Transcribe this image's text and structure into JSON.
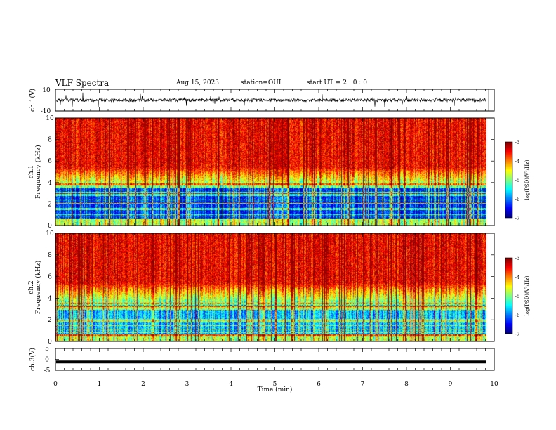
{
  "header": {
    "title": "VLF Spectra",
    "date": "Aug.15, 2023",
    "station": "station=OUI",
    "start": "start  UT =   2  : 0   : 0"
  },
  "chart_data": [
    {
      "type": "line",
      "panel": "ch1-waveform",
      "ylabel": "ch.1(V)",
      "ylim": [
        -10,
        10
      ],
      "yticks": [
        "10",
        "-10"
      ],
      "xlim": [
        0,
        10
      ],
      "series": [
        {
          "name": "",
          "baseline": 0,
          "typical_amplitude": 1.5,
          "trace_end": 9.82
        }
      ]
    },
    {
      "type": "heatmap",
      "panel": "ch1-spectrogram",
      "ylabel": "ch.1",
      "ylabel2": "Frequency  (kHz)",
      "ylim": [
        0,
        10
      ],
      "yticks": [
        "0",
        "2",
        "4",
        "6",
        "8",
        "10"
      ],
      "xlim": [
        0,
        10
      ],
      "data_end_min": 9.82,
      "colorbar": {
        "label": "log(PSD)(V²/Hz)",
        "range": [
          -7,
          -3
        ],
        "ticks": [
          "-3",
          "-4",
          "-5",
          "-6",
          "-7"
        ]
      }
    },
    {
      "type": "heatmap",
      "panel": "ch2-spectrogram",
      "ylabel": "ch.2",
      "ylabel2": "Frequency  (kHz)",
      "ylim": [
        0,
        10
      ],
      "yticks": [
        "0",
        "2",
        "4",
        "6",
        "8",
        "10"
      ],
      "xlim": [
        0,
        10
      ],
      "data_end_min": 9.82,
      "colorbar": {
        "label": "log(PSD)(V²/Hz)",
        "range": [
          -7,
          -3
        ],
        "ticks": [
          "-3",
          "-4",
          "-5",
          "-6",
          "-7"
        ]
      }
    },
    {
      "type": "line",
      "panel": "ch3-waveform",
      "ylabel": "ch.3(V)",
      "ylim": [
        -5,
        5
      ],
      "yticks": [
        "5",
        "0",
        "-5"
      ],
      "xlim": [
        0,
        10
      ],
      "series": [
        {
          "name": "",
          "baseline": -1.2,
          "trace_end": 9.82
        }
      ]
    }
  ],
  "xaxis": {
    "label": "Time  (min)",
    "ticks": [
      "0",
      "1",
      "2",
      "3",
      "4",
      "5",
      "6",
      "7",
      "8",
      "9",
      "10"
    ]
  }
}
